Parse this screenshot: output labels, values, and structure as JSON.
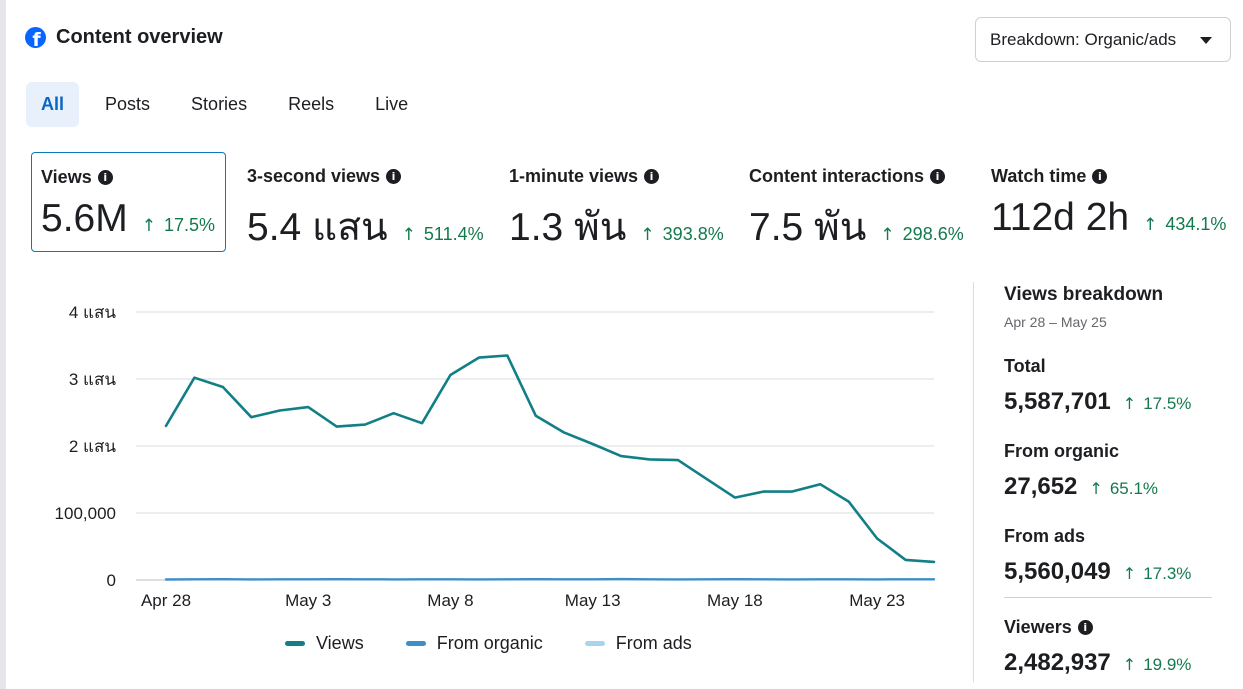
{
  "header": {
    "title": "Content overview",
    "logo_icon": "facebook-logo-icon"
  },
  "breakdown_dropdown": {
    "label": "Breakdown: Organic/ads"
  },
  "tabs": [
    {
      "label": "All",
      "active": true
    },
    {
      "label": "Posts",
      "active": false
    },
    {
      "label": "Stories",
      "active": false
    },
    {
      "label": "Reels",
      "active": false
    },
    {
      "label": "Live",
      "active": false
    }
  ],
  "metrics": [
    {
      "label": "Views",
      "value": "5.6M",
      "delta": "17.5%",
      "selected": true
    },
    {
      "label": "3-second views",
      "value": "5.4 แสน",
      "delta": "511.4%",
      "selected": false
    },
    {
      "label": "1-minute views",
      "value": "1.3 พัน",
      "delta": "393.8%",
      "selected": false
    },
    {
      "label": "Content interactions",
      "value": "7.5 พัน",
      "delta": "298.6%",
      "selected": false
    },
    {
      "label": "Watch time",
      "value": "112d 2h",
      "delta": "434.1%",
      "selected": false
    }
  ],
  "chart_data": {
    "type": "line",
    "x": [
      "Apr 28",
      "Apr 29",
      "Apr 30",
      "May 1",
      "May 2",
      "May 3",
      "May 4",
      "May 5",
      "May 6",
      "May 7",
      "May 8",
      "May 9",
      "May 10",
      "May 11",
      "May 12",
      "May 13",
      "May 14",
      "May 15",
      "May 16",
      "May 17",
      "May 18",
      "May 19",
      "May 20",
      "May 21",
      "May 22",
      "May 23",
      "May 24",
      "May 25"
    ],
    "x_tick_labels": [
      "Apr 28",
      "May 3",
      "May 8",
      "May 13",
      "May 18",
      "May 23"
    ],
    "y_tick_labels": [
      "0",
      "100,000",
      "2 แสน",
      "3 แสน",
      "4 แสน"
    ],
    "ylim": [
      0,
      400000
    ],
    "series": [
      {
        "name": "Views",
        "color": "#127f86",
        "values": [
          230000,
          302000,
          288000,
          243000,
          253000,
          258000,
          229000,
          232000,
          249000,
          234000,
          306000,
          332000,
          335000,
          245000,
          220000,
          203000,
          185000,
          180000,
          179000,
          151000,
          123000,
          132000,
          132000,
          143000,
          117000,
          62000,
          30000,
          27000
        ]
      },
      {
        "name": "From organic",
        "color": "#3d8fc7",
        "values": [
          800,
          1000,
          1200,
          900,
          1100,
          1000,
          1200,
          1100,
          900,
          1000,
          1000,
          900,
          1100,
          1200,
          1000,
          1100,
          1300,
          1000,
          900,
          1100,
          1200,
          1000,
          900,
          1000,
          1100,
          900,
          1000,
          1000
        ]
      },
      {
        "name": "From ads",
        "color": "#a8d5ee",
        "values": [
          229000,
          301000,
          287000,
          242000,
          252000,
          257000,
          228000,
          231000,
          248000,
          233000,
          305000,
          331000,
          334000,
          244000,
          219000,
          202000,
          184000,
          179000,
          178000,
          150000,
          122000,
          131000,
          131000,
          142000,
          116000,
          61000,
          29000,
          26000
        ]
      }
    ],
    "grid": true
  },
  "legend": [
    {
      "name": "Views",
      "color": "#127f86"
    },
    {
      "name": "From organic",
      "color": "#3d8fc7"
    },
    {
      "name": "From ads",
      "color": "#a8d5ee"
    }
  ],
  "breakdown_panel": {
    "title": "Views breakdown",
    "date_range": "Apr 28 – May 25",
    "total": {
      "label": "Total",
      "value": "5,587,701",
      "delta": "17.5%"
    },
    "organic": {
      "label": "From organic",
      "value": "27,652",
      "delta": "65.1%"
    },
    "ads": {
      "label": "From ads",
      "value": "5,560,049",
      "delta": "17.3%"
    },
    "viewers": {
      "label": "Viewers",
      "value": "2,482,937",
      "delta": "19.9%"
    }
  }
}
